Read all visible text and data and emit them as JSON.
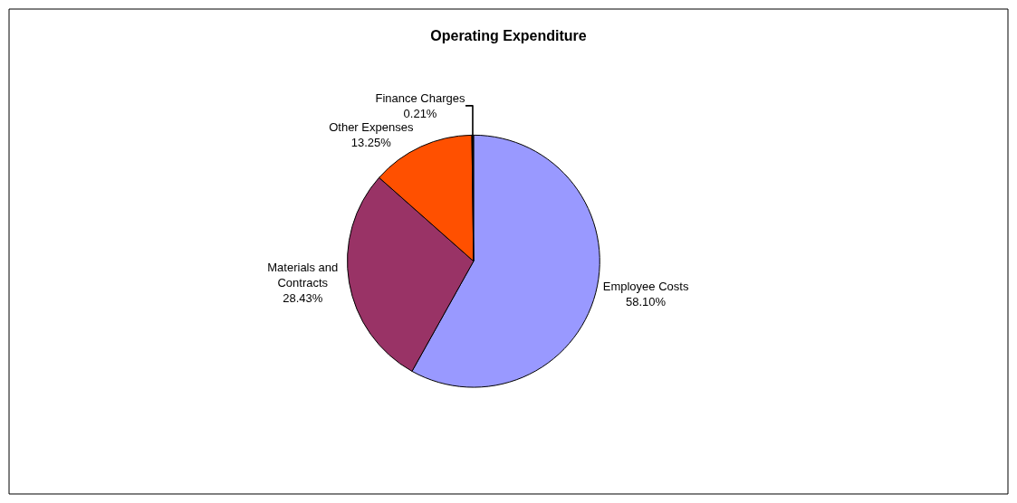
{
  "chart_data": {
    "type": "pie",
    "title": "Operating Expenditure",
    "categories": [
      "Employee Costs",
      "Materials and Contracts",
      "Other Expenses",
      "Finance Charges"
    ],
    "values": [
      58.1,
      28.43,
      13.25,
      0.21
    ],
    "colors": [
      "#9999ff",
      "#993366",
      "#ff5000",
      "#000000"
    ],
    "value_labels": [
      "58.10%",
      "28.43%",
      "13.25%",
      "0.21%"
    ],
    "legend": false
  }
}
